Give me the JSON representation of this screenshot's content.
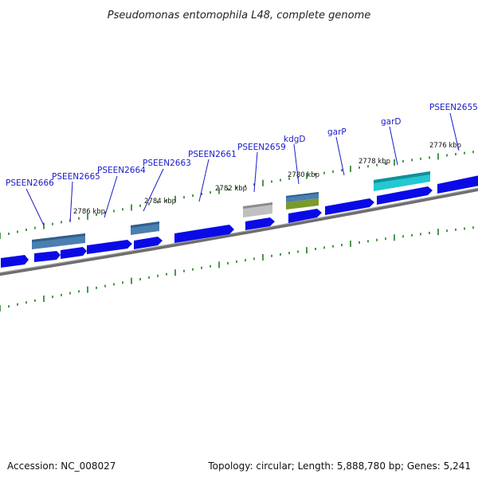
{
  "title": "Pseudomonas entomophila L48, complete genome",
  "footer": {
    "accession": "Accession: NC_008027",
    "info": "Topology: circular; Length: 5,888,780 bp; Genes: 5,241"
  },
  "tick_labels": [
    "2786 kbp",
    "2784 kbp",
    "2782 kbp",
    "2780 kbp",
    "2778 kbp",
    "2776 kbp"
  ],
  "gene_labels": [
    "PSEEN2666",
    "PSEEN2665",
    "PSEEN2664",
    "PSEEN2663",
    "PSEEN2661",
    "PSEEN2659",
    "kdgD",
    "garP",
    "garD",
    "PSEEN2655"
  ],
  "colors": {
    "gene_blue": "#0a0ae6",
    "feature_steel": "#4a7fb0",
    "feature_gray": "#b4b4b4",
    "feature_olive": "#7a9a2a",
    "feature_cyan": "#22c8d2",
    "backbone": "#8a8a8a",
    "tick_green": "#1e7d1e",
    "label_blue": "#1a1acc"
  }
}
